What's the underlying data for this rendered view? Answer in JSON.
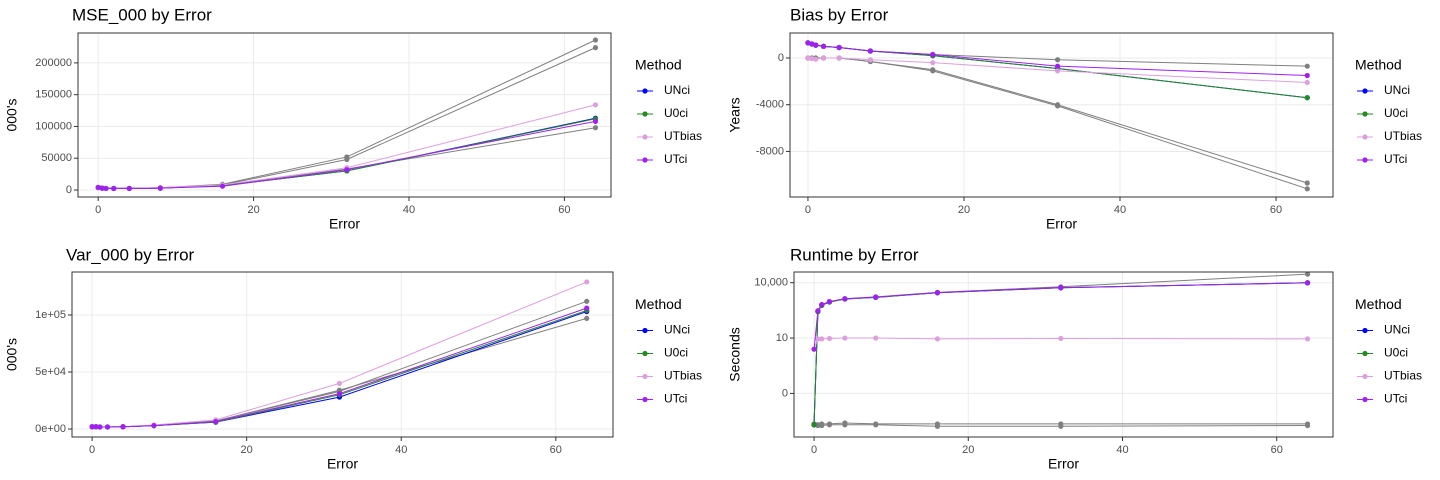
{
  "chart_data": [
    {
      "type": "line",
      "title": "MSE_000 by Error",
      "x_label": "Error",
      "y_label": "000's",
      "legend_title": "Method",
      "x": [
        0,
        0.5,
        1,
        2,
        4,
        8,
        16,
        32,
        64
      ],
      "xlim": [
        -2.6,
        66.0
      ],
      "xticks": [
        0,
        20,
        40,
        60
      ],
      "ylim": [
        -11000,
        247000
      ],
      "yticks": [
        0,
        50000,
        100000,
        150000,
        200000
      ],
      "grid": true,
      "series": [
        {
          "color": "#7f7f7f",
          "values": [
            4000,
            3000,
            2500,
            2500,
            2500,
            3500,
            9000,
            52000,
            236000
          ]
        },
        {
          "color": "#7f7f7f",
          "values": [
            4000,
            3000,
            2500,
            2500,
            2500,
            3500,
            8000,
            48000,
            224000
          ]
        },
        {
          "color": "#7f7f7f",
          "values": [
            4000,
            3000,
            2500,
            2500,
            2500,
            3000,
            7000,
            33000,
            98000
          ]
        },
        {
          "name": "UNci",
          "color": "#0000ff",
          "values": [
            4000,
            3000,
            2500,
            2500,
            2500,
            3000,
            7000,
            30000,
            113000
          ]
        },
        {
          "name": "U0ci",
          "color": "#228b22",
          "values": [
            4000,
            3000,
            2500,
            2500,
            2500,
            3000,
            7000,
            30000,
            112000
          ]
        },
        {
          "name": "UTbias",
          "color": "#dda0dd",
          "values": [
            4000,
            3000,
            2500,
            2500,
            2500,
            3500,
            8000,
            35000,
            134000
          ]
        },
        {
          "name": "UTci",
          "color": "#a020f0",
          "values": [
            4000,
            3000,
            2500,
            2500,
            2500,
            3000,
            6000,
            32000,
            108000
          ]
        }
      ]
    },
    {
      "type": "line",
      "title": "Bias by Error",
      "x_label": "Error",
      "y_label": "Years",
      "legend_title": "Method",
      "x": [
        0,
        0.5,
        1,
        2,
        4,
        8,
        16,
        32,
        64
      ],
      "xlim": [
        -2.3,
        67.3
      ],
      "xticks": [
        0,
        20,
        40,
        60
      ],
      "ylim": [
        -11900,
        2140
      ],
      "yticks": [
        -8000,
        -4000,
        0
      ],
      "grid": true,
      "series": [
        {
          "color": "#7f7f7f",
          "values": [
            0,
            0,
            0,
            0,
            0,
            -300,
            -1000,
            -4000,
            -10700
          ]
        },
        {
          "color": "#7f7f7f",
          "values": [
            0,
            0,
            0,
            0,
            0,
            -300,
            -1100,
            -4100,
            -11200
          ]
        },
        {
          "color": "#7f7f7f",
          "values": [
            1300,
            1200,
            1100,
            1000,
            900,
            600,
            300,
            -150,
            -700
          ]
        },
        {
          "name": "UNci",
          "color": "#0000ff",
          "values": [
            1300,
            1200,
            1100,
            1000,
            900,
            600,
            200,
            -900,
            -3400
          ]
        },
        {
          "name": "U0ci",
          "color": "#228b22",
          "values": [
            1300,
            1200,
            1100,
            1000,
            900,
            600,
            200,
            -900,
            -3400
          ]
        },
        {
          "name": "UTbias",
          "color": "#dda0dd",
          "values": [
            0,
            -50,
            -100,
            0,
            0,
            -150,
            -400,
            -1100,
            -2100
          ]
        },
        {
          "name": "UTci",
          "color": "#a020f0",
          "values": [
            1300,
            1200,
            1100,
            1000,
            900,
            600,
            300,
            -700,
            -1500
          ]
        }
      ]
    },
    {
      "type": "line",
      "title": "Var_000 by Error",
      "x_label": "Error",
      "y_label": "000's",
      "legend_title": "Method",
      "x": [
        0,
        0.5,
        1,
        2,
        4,
        8,
        16,
        32,
        64
      ],
      "xlim": [
        -2.6,
        67.4
      ],
      "xticks": [
        0,
        20,
        40,
        60
      ],
      "ylim": [
        -7000,
        137700
      ],
      "yticks": [
        {
          "value": 0,
          "label": "0e+00"
        },
        {
          "value": 50000,
          "label": "5e+04"
        },
        {
          "value": 100000,
          "label": "1e+05"
        }
      ],
      "grid": true,
      "series": [
        {
          "color": "#7f7f7f",
          "values": [
            2000,
            2000,
            1800,
            1800,
            2000,
            3000,
            7000,
            33000,
            112000
          ]
        },
        {
          "color": "#7f7f7f",
          "values": [
            2000,
            2000,
            1800,
            1800,
            2000,
            3000,
            7000,
            34000,
            97000
          ]
        },
        {
          "name": "UNci",
          "color": "#0000ff",
          "values": [
            2000,
            2000,
            1800,
            1800,
            2000,
            3000,
            6000,
            28000,
            103000
          ]
        },
        {
          "name": "U0ci",
          "color": "#228b22",
          "values": [
            2000,
            2000,
            1800,
            1800,
            2000,
            3000,
            6000,
            30000,
            104000
          ]
        },
        {
          "name": "UTbias",
          "color": "#dda0dd",
          "values": [
            2000,
            2000,
            1800,
            1800,
            2000,
            3500,
            8000,
            40000,
            129000
          ]
        },
        {
          "name": "UTci",
          "color": "#a020f0",
          "values": [
            2000,
            2000,
            1800,
            1800,
            2000,
            3000,
            6500,
            31000,
            106000
          ]
        }
      ]
    },
    {
      "type": "line",
      "title": "Runtime by Error",
      "x_label": "Error",
      "y_label": "Seconds",
      "legend_title": "Method",
      "x": [
        0,
        0.5,
        1,
        2,
        4,
        8,
        16,
        32,
        64
      ],
      "xlim": [
        -2.6,
        67.3
      ],
      "xticks": [
        0,
        20,
        40,
        60
      ],
      "yscale": "pseudo_log",
      "ylim": [
        -2.3,
        38000
      ],
      "yticks": [
        0,
        10,
        {
          "value": 10000,
          "label": "10,000"
        }
      ],
      "grid": true,
      "series": [
        {
          "color": "#7f7f7f",
          "values": [
            -0.5,
            300,
            650,
            950,
            1350,
            1700,
            3000,
            6000,
            29000
          ]
        },
        {
          "color": "#7f7f7f",
          "values": [
            -0.5,
            -0.55,
            -0.55,
            -0.5,
            -0.5,
            -0.5,
            -0.6,
            -0.6,
            -0.55
          ]
        },
        {
          "color": "#7f7f7f",
          "values": [
            -0.45,
            -0.5,
            -0.45,
            -0.45,
            -0.4,
            -0.45,
            -0.45,
            -0.45,
            -0.45
          ]
        },
        {
          "name": "UNci",
          "color": "#0000ff",
          "values": [
            -0.5,
            270,
            600,
            900,
            1300,
            1600,
            2850,
            5300,
            9900
          ]
        },
        {
          "name": "U0ci",
          "color": "#228b22",
          "values": [
            -0.5,
            270,
            600,
            900,
            1300,
            1600,
            2850,
            5300,
            9900
          ]
        },
        {
          "name": "UTbias",
          "color": "#dda0dd",
          "values": [
            2.5,
            9,
            9,
            9.5,
            10,
            10,
            9,
            9.5,
            9
          ]
        },
        {
          "name": "UTci",
          "color": "#a020f0",
          "values": [
            2.5,
            300,
            650,
            950,
            1350,
            1650,
            2900,
            5400,
            9800
          ]
        }
      ]
    }
  ]
}
